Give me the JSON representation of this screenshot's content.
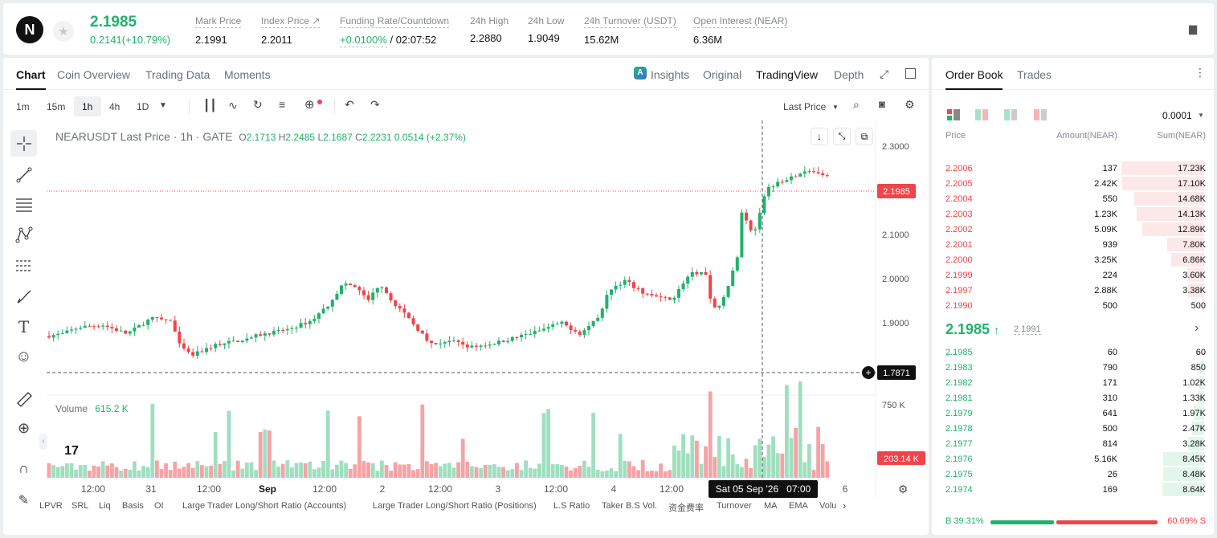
{
  "header": {
    "logo_text": "N",
    "last_price": "2.1985",
    "change": "0.2141(+10.79%)",
    "stats": [
      {
        "label": "Mark Price",
        "value": "2.1991"
      },
      {
        "label": "Index Price ↗",
        "value": "2.2011"
      },
      {
        "label": "Funding Rate/Countdown",
        "value": "+0.0100%",
        "value2": "/ 02:07:52"
      },
      {
        "label": "24h High",
        "value": "2.2880"
      },
      {
        "label": "24h Low",
        "value": "1.9049"
      },
      {
        "label": "24h Turnover (USDT)",
        "value": "15.62M"
      },
      {
        "label": "Open Interest (NEAR)",
        "value": "6.36M"
      }
    ]
  },
  "chart_tabs": [
    "Chart",
    "Coin Overview",
    "Trading Data",
    "Moments"
  ],
  "view_tabs": {
    "insights": "Insights",
    "original": "Original",
    "tradingview": "TradingView",
    "depth": "Depth"
  },
  "intervals": [
    "1m",
    "15m",
    "1h",
    "4h",
    "1D"
  ],
  "active_interval": "1h",
  "price_type": "Last Price",
  "legend": {
    "symbol": "NEARUSDT Last Price · 1h · GATE",
    "o_label": "O",
    "o": "2.1713",
    "h_label": "H",
    "h": "2.2485",
    "l_label": "L",
    "l": "2.1687",
    "c_label": "C",
    "c": "2.2231",
    "chg": "0.0514 (+2.37%)"
  },
  "volume": {
    "label": "Volume",
    "value": "615.2 K"
  },
  "price_axis": [
    "2.3000",
    "2.1000",
    "2.0000",
    "1.9000"
  ],
  "vol_axis": "750 K",
  "current_price_tag": "2.1985",
  "cross_price_tag": "1.7871",
  "vol_tag": "203.14 K",
  "time_axis": [
    "12:00",
    "31",
    "12:00",
    "Sep",
    "12:00",
    "2",
    "12:00",
    "3",
    "12:00",
    "4",
    "12:00",
    "6"
  ],
  "time_tag": "Sat 05 Sep '26   07:00",
  "bottom_indicators": [
    "LPVR",
    "SRL",
    "Liq",
    "Basis",
    "OI",
    "Large Trader Long/Short Ratio (Accounts)",
    "Large Trader Long/Short Ratio (Positions)",
    "L.S Ratio",
    "Taker B.S Vol.",
    "资金费率",
    "Turnover",
    "MA",
    "EMA",
    "Volu"
  ],
  "orderbook": {
    "tabs": [
      "Order Book",
      "Trades"
    ],
    "precision": "0.0001",
    "headers": {
      "price": "Price",
      "amount": "Amount(NEAR)",
      "sum": "Sum(NEAR)"
    },
    "asks": [
      {
        "p": "2.2006",
        "a": "137",
        "s": "17.23K",
        "w": 0.98
      },
      {
        "p": "2.2005",
        "a": "2.42K",
        "s": "17.10K",
        "w": 0.97
      },
      {
        "p": "2.2004",
        "a": "550",
        "s": "14.68K",
        "w": 0.83
      },
      {
        "p": "2.2003",
        "a": "1.23K",
        "s": "14.13K",
        "w": 0.8
      },
      {
        "p": "2.2002",
        "a": "5.09K",
        "s": "12.89K",
        "w": 0.73
      },
      {
        "p": "2.2001",
        "a": "939",
        "s": "7.80K",
        "w": 0.44
      },
      {
        "p": "2.2000",
        "a": "3.25K",
        "s": "6.86K",
        "w": 0.39
      },
      {
        "p": "2.1999",
        "a": "224",
        "s": "3.60K",
        "w": 0.2
      },
      {
        "p": "2.1997",
        "a": "2.88K",
        "s": "3.38K",
        "w": 0.19
      },
      {
        "p": "2.1990",
        "a": "500",
        "s": "500",
        "w": 0.03
      }
    ],
    "mid_price": "2.1985",
    "mid_mark": "2.1991",
    "bids": [
      {
        "p": "2.1985",
        "a": "60",
        "s": "60",
        "w": 0.01
      },
      {
        "p": "2.1983",
        "a": "790",
        "s": "850",
        "w": 0.05
      },
      {
        "p": "2.1982",
        "a": "171",
        "s": "1.02K",
        "w": 0.06
      },
      {
        "p": "2.1981",
        "a": "310",
        "s": "1.33K",
        "w": 0.08
      },
      {
        "p": "2.1979",
        "a": "641",
        "s": "1.97K",
        "w": 0.12
      },
      {
        "p": "2.1978",
        "a": "500",
        "s": "2.47K",
        "w": 0.14
      },
      {
        "p": "2.1977",
        "a": "814",
        "s": "3.28K",
        "w": 0.19
      },
      {
        "p": "2.1976",
        "a": "5.16K",
        "s": "8.45K",
        "w": 0.49
      },
      {
        "p": "2.1975",
        "a": "26",
        "s": "8.48K",
        "w": 0.49
      },
      {
        "p": "2.1974",
        "a": "169",
        "s": "8.64K",
        "w": 0.5
      }
    ],
    "buy_ratio": "39.31%",
    "sell_ratio": "60.69%",
    "buy_label": "B",
    "sell_label": "S"
  },
  "colors": {
    "up": "#20b26c",
    "down": "#ef454a"
  }
}
